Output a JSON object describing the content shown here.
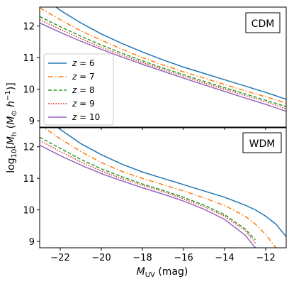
{
  "chart_data": {
    "type": "line",
    "shared_xlabel": "M_UV (mag)",
    "shared_ylabel": "log10[M_h (M_⊙ h^-1)]",
    "xlim": [
      -23,
      -11
    ],
    "ylim": [
      8.8,
      12.6
    ],
    "xticks": [
      -22,
      -20,
      -18,
      -16,
      -14,
      -12
    ],
    "yticks": [
      9,
      10,
      11,
      12
    ],
    "legend_placement": "left",
    "legend": [
      {
        "label": "z = 6",
        "color": "#1f77b4",
        "dash": "solid"
      },
      {
        "label": "z = 7",
        "color": "#ff7f0e",
        "dash": "dashdot"
      },
      {
        "label": "z = 8",
        "color": "#2ca02c",
        "dash": "dashed"
      },
      {
        "label": "z = 9",
        "color": "#d62728",
        "dash": "dotted"
      },
      {
        "label": "z = 10",
        "color": "#9467bd",
        "dash": "solid"
      }
    ],
    "panels": [
      {
        "label": "CDM",
        "x": [
          -23,
          -22,
          -21,
          -20,
          -19,
          -18,
          -17,
          -16,
          -15,
          -14,
          -13,
          -12,
          -11
        ],
        "series": [
          {
            "name": "z = 6",
            "values": [
              13.0,
              12.5,
              12.1,
              11.75,
              11.45,
              11.18,
              10.93,
              10.7,
              10.5,
              10.3,
              10.1,
              9.9,
              9.68
            ]
          },
          {
            "name": "z = 7",
            "values": [
              12.58,
              12.2,
              11.85,
              11.55,
              11.27,
              11.0,
              10.77,
              10.55,
              10.35,
              10.15,
              9.95,
              9.76,
              9.56
            ]
          },
          {
            "name": "z = 8",
            "values": [
              12.3,
              11.98,
              11.68,
              11.4,
              11.14,
              10.9,
              10.67,
              10.46,
              10.25,
              10.05,
              9.85,
              9.65,
              9.45
            ]
          },
          {
            "name": "z = 9",
            "values": [
              12.2,
              11.9,
              11.6,
              11.33,
              11.08,
              10.85,
              10.62,
              10.41,
              10.2,
              10.0,
              9.8,
              9.6,
              9.38
            ]
          },
          {
            "name": "z = 10",
            "values": [
              12.1,
              11.8,
              11.52,
              11.26,
              11.02,
              10.79,
              10.57,
              10.35,
              10.14,
              9.93,
              9.72,
              9.52,
              9.3
            ]
          }
        ]
      },
      {
        "label": "WDM",
        "x": [
          -23,
          -22,
          -21,
          -20,
          -19,
          -18,
          -17,
          -16,
          -15,
          -14,
          -13,
          -12.5,
          -12,
          -11.5,
          -11
        ],
        "series": [
          {
            "name": "z = 6",
            "values": [
              13.05,
              12.55,
              12.1,
              11.75,
              11.45,
              11.2,
              11.0,
              10.8,
              10.6,
              10.4,
              10.15,
              10.0,
              9.8,
              9.55,
              9.15
            ]
          },
          {
            "name": "z = 7",
            "values": [
              12.7,
              12.25,
              11.85,
              11.5,
              11.22,
              11.0,
              10.8,
              10.6,
              10.38,
              10.14,
              9.8,
              9.55,
              9.22,
              8.8,
              null
            ]
          },
          {
            "name": "z = 8",
            "values": [
              12.3,
              11.95,
              11.6,
              11.3,
              11.05,
              10.82,
              10.62,
              10.4,
              10.15,
              9.85,
              9.4,
              9.05,
              null,
              null,
              null
            ]
          },
          {
            "name": "z = 9",
            "values": [
              12.2,
              11.85,
              11.52,
              11.23,
              10.99,
              10.78,
              10.58,
              10.35,
              10.1,
              9.8,
              9.35,
              8.95,
              null,
              null,
              null
            ]
          },
          {
            "name": "z = 10",
            "values": [
              12.05,
              11.72,
              11.42,
              11.15,
              10.92,
              10.7,
              10.5,
              10.28,
              10.02,
              9.7,
              9.2,
              8.8,
              null,
              null,
              null
            ]
          }
        ]
      }
    ]
  }
}
